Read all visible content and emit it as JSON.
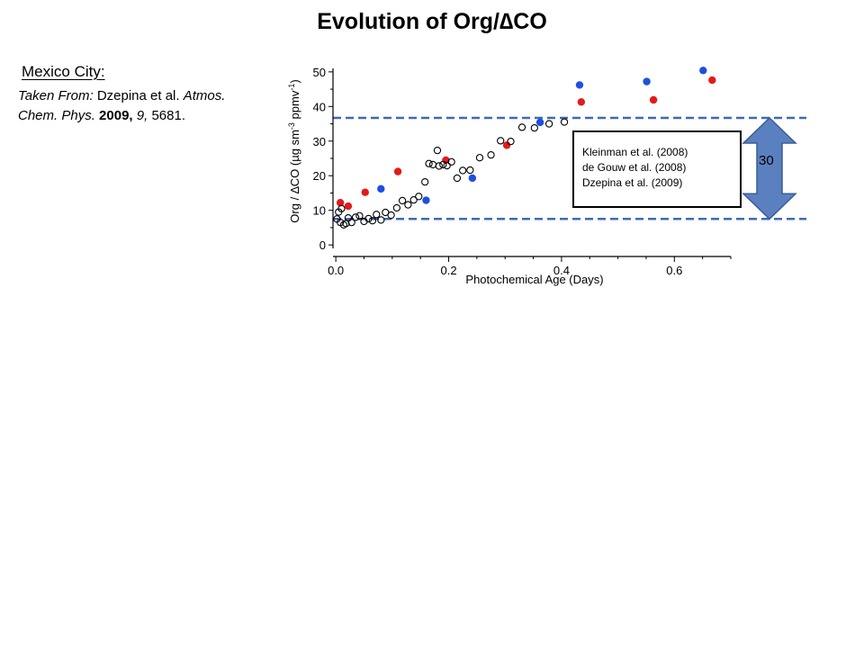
{
  "slide": {
    "title": "Evolution of Org/∆CO",
    "city": "Mexico City:",
    "citation": {
      "line1_italic": "Taken From:",
      "line1_normal": " Dzepina et al. ",
      "line1_italic2": "Atmos.",
      "line2_italic": "Chem. Phys.",
      "line2_bold": " 2009,",
      "line2_vol": " 9,",
      "line2_pages": " 5681."
    }
  },
  "chart_data": {
    "type": "scatter",
    "xlabel": "Photochemical Age (Days)",
    "ylabel_parts": [
      "Org / ",
      "∆",
      "CO (µg sm",
      "-3",
      " ppmv",
      "-1",
      ")"
    ],
    "xlim": [
      -0.005,
      0.7
    ],
    "ylim": [
      -1,
      51
    ],
    "xticks": [
      0.0,
      0.2,
      0.4,
      0.6
    ],
    "xtick_labels": [
      "0.0",
      "0.2",
      "0.4",
      "0.6"
    ],
    "yticks": [
      0,
      10,
      20,
      30,
      40,
      50
    ],
    "ytick_labels": [
      "0",
      "10",
      "20",
      "30",
      "40",
      "50"
    ],
    "grid": false,
    "legend": {
      "position": "right",
      "entries": [
        "Kleinman et al. (2008)",
        "de Gouw et al. (2008)",
        "Dzepina et al. (2009)"
      ]
    },
    "series": [
      {
        "marker": "filled-circle",
        "color": "#e31a1c",
        "x": [
          0.008,
          0.022,
          0.052,
          0.11,
          0.195,
          0.303,
          0.435,
          0.563,
          0.667
        ],
        "y": [
          12.2,
          11.2,
          15.2,
          21.2,
          24.5,
          28.8,
          41.3,
          41.9,
          47.6
        ]
      },
      {
        "marker": "filled-circle",
        "color": "#1f4fe0",
        "x": [
          0.08,
          0.16,
          0.242,
          0.362,
          0.432,
          0.551,
          0.651
        ],
        "y": [
          16.2,
          12.9,
          19.3,
          35.4,
          46.2,
          47.2,
          50.4
        ]
      },
      {
        "marker": "open-circle",
        "color": "#000000",
        "x": [
          0.002,
          0.005,
          0.008,
          0.01,
          0.014,
          0.018,
          0.022,
          0.028,
          0.035,
          0.042,
          0.05,
          0.058,
          0.065,
          0.072,
          0.08,
          0.088,
          0.098,
          0.108,
          0.118,
          0.128,
          0.138,
          0.147,
          0.158,
          0.165,
          0.172,
          0.18,
          0.183,
          0.19,
          0.197,
          0.205,
          0.215,
          0.225,
          0.238,
          0.255,
          0.275,
          0.292,
          0.31,
          0.33,
          0.352,
          0.378,
          0.405
        ],
        "y": [
          7.5,
          9.5,
          6.5,
          10.5,
          5.8,
          6.2,
          7.8,
          6.5,
          8.0,
          8.4,
          6.8,
          7.6,
          7.0,
          8.8,
          7.2,
          9.4,
          8.6,
          10.7,
          12.8,
          11.6,
          13.0,
          14.0,
          18.2,
          23.5,
          23.2,
          27.3,
          22.8,
          23.2,
          22.9,
          24.0,
          19.3,
          21.5,
          21.6,
          25.2,
          26.0,
          30.1,
          29.9,
          34.0,
          33.8,
          35.0,
          35.5
        ]
      }
    ],
    "reference_lines": [
      {
        "y": 36.7,
        "style": "dashed",
        "color": "#3d6bb3"
      },
      {
        "y": 7.5,
        "style": "dashed",
        "color": "#3d6bb3"
      }
    ],
    "range_arrow": {
      "from": 7.5,
      "to": 36.7,
      "label": "30",
      "color": "#5b80bf"
    }
  }
}
